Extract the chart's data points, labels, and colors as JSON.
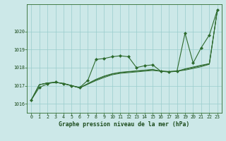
{
  "background_color": "#cce8e8",
  "plot_bg_color": "#cce8e8",
  "grid_color": "#99cccc",
  "line_color": "#2d6a2d",
  "title": "Graphe pression niveau de la mer (hPa)",
  "ylim": [
    1015.5,
    1021.5
  ],
  "xlim": [
    -0.5,
    23.5
  ],
  "yticks": [
    1016,
    1017,
    1018,
    1019,
    1020
  ],
  "xticks": [
    0,
    1,
    2,
    3,
    4,
    5,
    6,
    7,
    8,
    9,
    10,
    11,
    12,
    13,
    14,
    15,
    16,
    17,
    18,
    19,
    20,
    21,
    22,
    23
  ],
  "series_main": [
    1016.2,
    1016.9,
    1017.1,
    1017.2,
    1017.1,
    1017.0,
    1016.9,
    1017.3,
    1018.45,
    1018.5,
    1018.6,
    1018.65,
    1018.6,
    1018.0,
    1018.1,
    1018.15,
    1017.8,
    1017.75,
    1017.8,
    1019.9,
    1018.25,
    1019.1,
    1019.8,
    1021.2
  ],
  "series_smooth1": [
    1016.2,
    1017.05,
    1017.15,
    1017.18,
    1017.12,
    1017.0,
    1016.88,
    1017.08,
    1017.28,
    1017.45,
    1017.6,
    1017.68,
    1017.72,
    1017.76,
    1017.8,
    1017.84,
    1017.8,
    1017.78,
    1017.8,
    1017.86,
    1017.95,
    1018.05,
    1018.18,
    1021.2
  ],
  "series_smooth2": [
    1016.2,
    1017.05,
    1017.15,
    1017.18,
    1017.12,
    1017.0,
    1016.88,
    1017.1,
    1017.32,
    1017.5,
    1017.64,
    1017.72,
    1017.76,
    1017.8,
    1017.84,
    1017.88,
    1017.8,
    1017.78,
    1017.8,
    1017.9,
    1018.0,
    1018.1,
    1018.2,
    1021.2
  ],
  "series_smooth3": [
    1016.2,
    1017.05,
    1017.15,
    1017.18,
    1017.12,
    1017.0,
    1016.88,
    1017.12,
    1017.35,
    1017.53,
    1017.66,
    1017.74,
    1017.78,
    1017.82,
    1017.86,
    1017.9,
    1017.8,
    1017.78,
    1017.8,
    1017.93,
    1018.03,
    1018.13,
    1018.22,
    1021.2
  ]
}
